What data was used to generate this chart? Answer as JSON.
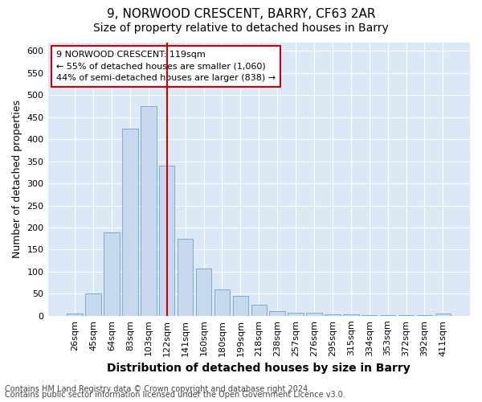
{
  "title1": "9, NORWOOD CRESCENT, BARRY, CF63 2AR",
  "title2": "Size of property relative to detached houses in Barry",
  "xlabel": "Distribution of detached houses by size in Barry",
  "ylabel": "Number of detached properties",
  "categories": [
    "26sqm",
    "45sqm",
    "64sqm",
    "83sqm",
    "103sqm",
    "122sqm",
    "141sqm",
    "160sqm",
    "180sqm",
    "199sqm",
    "218sqm",
    "238sqm",
    "257sqm",
    "276sqm",
    "295sqm",
    "315sqm",
    "334sqm",
    "353sqm",
    "372sqm",
    "392sqm",
    "411sqm"
  ],
  "values": [
    5,
    50,
    190,
    425,
    475,
    340,
    175,
    107,
    60,
    45,
    25,
    10,
    7,
    7,
    3,
    3,
    2,
    2,
    2,
    2,
    5
  ],
  "bar_color": "#c8d8ee",
  "bar_edge_color": "#7aaad0",
  "vline_x": 5,
  "vline_color": "#cc0000",
  "ylim": [
    0,
    620
  ],
  "yticks": [
    0,
    50,
    100,
    150,
    200,
    250,
    300,
    350,
    400,
    450,
    500,
    550,
    600
  ],
  "annotation_text": "9 NORWOOD CRESCENT: 119sqm\n← 55% of detached houses are smaller (1,060)\n44% of semi-detached houses are larger (838) →",
  "annotation_box_facecolor": "#ffffff",
  "annotation_box_edgecolor": "#cc0000",
  "footer1": "Contains HM Land Registry data © Crown copyright and database right 2024.",
  "footer2": "Contains public sector information licensed under the Open Government Licence v3.0.",
  "fig_facecolor": "#ffffff",
  "plot_facecolor": "#dce8f5",
  "grid_color": "#ffffff",
  "title1_fontsize": 11,
  "title2_fontsize": 10,
  "xlabel_fontsize": 10,
  "ylabel_fontsize": 9,
  "tick_fontsize": 8,
  "annotation_fontsize": 8,
  "footer_fontsize": 7
}
